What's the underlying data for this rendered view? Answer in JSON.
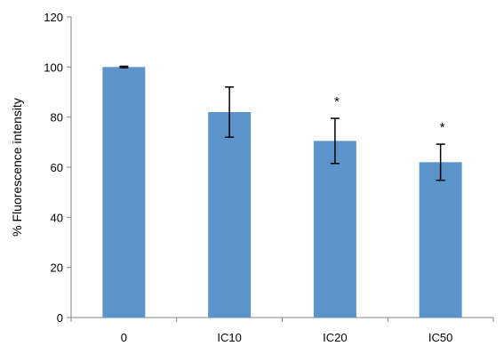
{
  "chart_data": {
    "type": "bar",
    "categories": [
      "0",
      "IC10",
      "IC20",
      "IC50"
    ],
    "values": [
      100,
      82,
      70.5,
      62
    ],
    "error": [
      0.3,
      10,
      9,
      7.2
    ],
    "significance": [
      "",
      "",
      "*",
      "*"
    ],
    "title": "",
    "xlabel": "",
    "ylabel": "% Fluorescence intensity",
    "ylim": [
      0,
      120
    ],
    "yticks": [
      0,
      20,
      40,
      60,
      80,
      100,
      120
    ],
    "grid": false,
    "bar_color": "#5b93cb",
    "legend": "none"
  }
}
